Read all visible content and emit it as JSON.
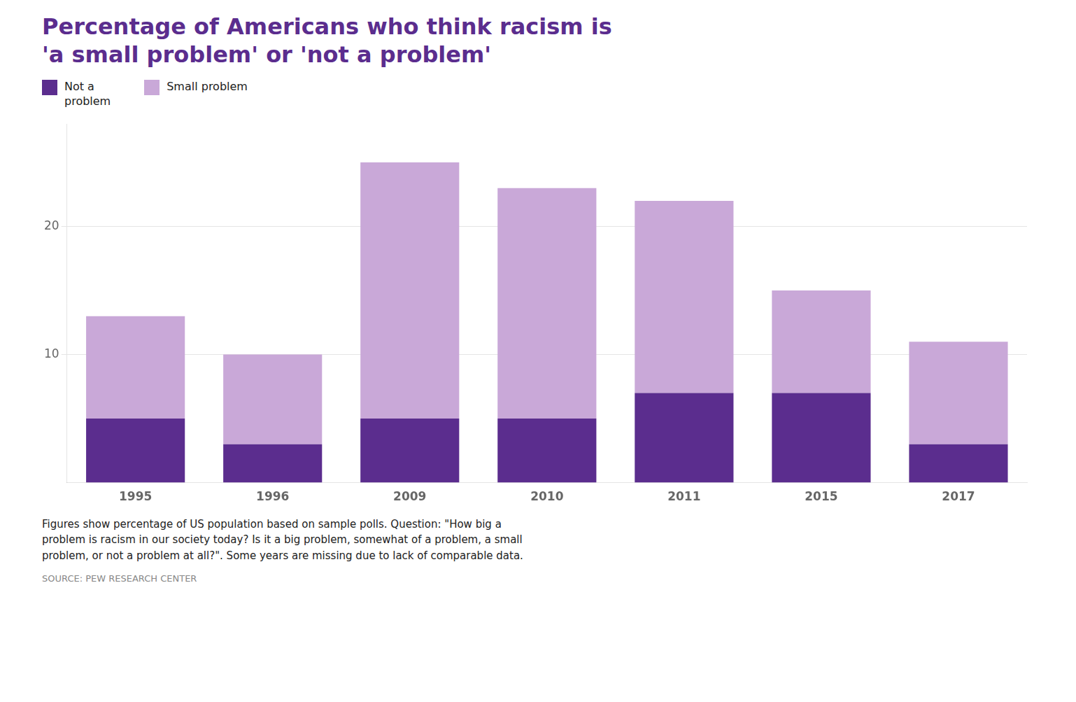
{
  "chart_data": {
    "type": "bar",
    "title": [
      "Percentage of Americans who think racism is",
      "'a small problem' or 'not a problem'"
    ],
    "categories": [
      "1995",
      "1996",
      "2009",
      "2010",
      "2011",
      "2015",
      "2017"
    ],
    "series": [
      {
        "name": "Not a\nproblem",
        "color": "#5B2D8E",
        "values": [
          5,
          3,
          5,
          5,
          7,
          7,
          3
        ]
      },
      {
        "name": "Small problem",
        "color": "#C9A8D8",
        "values": [
          8,
          7,
          20,
          18,
          15,
          8,
          8
        ]
      }
    ],
    "ylim": [
      0,
      28
    ],
    "yticks": [
      10,
      20
    ],
    "grid": true,
    "stacked": true,
    "legend": "top",
    "annotations": [
      "Figures show percentage of US population based on sample polls. Question: \"How big a\nproblem is racism in our society today? Is it a big problem, somewhat of a problem, a small\nproblem, or not a problem at all?\". Some years are missing due to lack of comparable data.",
      "SOURCE: PEW RESEARCH CENTER"
    ]
  }
}
